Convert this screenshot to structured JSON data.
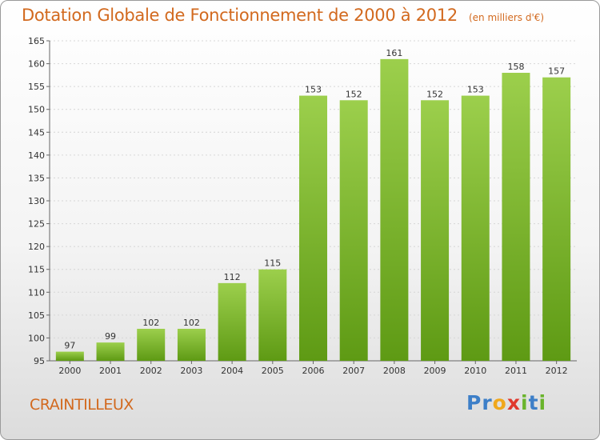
{
  "header": {
    "title": "Dotation Globale de Fonctionnement de 2000 à 2012",
    "subtitle": "(en milliers d'€)"
  },
  "footer": {
    "commune": "CRAINTILLEUX",
    "logo_letters": [
      {
        "ch": "P",
        "color": "#3d7fc8"
      },
      {
        "ch": "r",
        "color": "#3d7fc8"
      },
      {
        "ch": "o",
        "color": "#f0a81c"
      },
      {
        "ch": "x",
        "color": "#e0382c"
      },
      {
        "ch": "i",
        "color": "#6ab42c"
      },
      {
        "ch": "t",
        "color": "#3d7fc8"
      },
      {
        "ch": "i",
        "color": "#6ab42c"
      }
    ]
  },
  "colors": {
    "title": "#d2691e",
    "bar_top": "#9ccf4c",
    "bar_bottom": "#5e9a14"
  },
  "chart_data": {
    "type": "bar",
    "title": "Dotation Globale de Fonctionnement de 2000 à 2012",
    "subtitle": "(en milliers d'€)",
    "categories": [
      "2000",
      "2001",
      "2002",
      "2003",
      "2004",
      "2005",
      "2006",
      "2007",
      "2008",
      "2009",
      "2010",
      "2011",
      "2012"
    ],
    "values": [
      97,
      99,
      102,
      102,
      112,
      115,
      153,
      152,
      161,
      152,
      153,
      158,
      157
    ],
    "ylim": [
      95,
      165
    ],
    "yticks": [
      95,
      100,
      105,
      110,
      115,
      120,
      125,
      130,
      135,
      140,
      145,
      150,
      155,
      160,
      165
    ],
    "grid": true
  }
}
